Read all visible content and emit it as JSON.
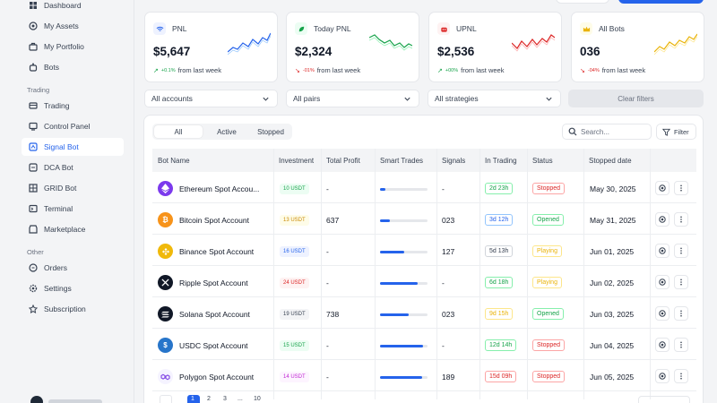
{
  "sidebar": {
    "items_main": [
      {
        "label": "Dashboard",
        "icon": "dashboard-icon"
      },
      {
        "label": "My Assets",
        "icon": "wallet-icon"
      },
      {
        "label": "My Portfolio",
        "icon": "portfolio-icon"
      },
      {
        "label": "Bots",
        "icon": "bot-icon"
      }
    ],
    "section_trading": "Trading",
    "items_trading": [
      {
        "label": "Trading",
        "icon": "trading-icon"
      },
      {
        "label": "Control Panel",
        "icon": "control-panel-icon"
      },
      {
        "label": "Signal Bot",
        "icon": "signal-icon"
      },
      {
        "label": "DCA Bot",
        "icon": "dca-icon"
      },
      {
        "label": "GRID Bot",
        "icon": "grid-icon"
      },
      {
        "label": "Terminal",
        "icon": "terminal-icon"
      },
      {
        "label": "Marketplace",
        "icon": "marketplace-icon"
      }
    ],
    "section_other": "Other",
    "items_other": [
      {
        "label": "Orders",
        "icon": "orders-icon"
      },
      {
        "label": "Settings",
        "icon": "gear-icon"
      },
      {
        "label": "Subscription",
        "icon": "subscription-icon"
      }
    ],
    "active": "Signal Bot"
  },
  "cards": [
    {
      "title": "PNL",
      "value": "$5,647",
      "pct": "+0.1%",
      "change_text": "from last week",
      "trend": "up",
      "icon": "wifi-icon",
      "color": "#2563eb",
      "bg": "#eef2ff"
    },
    {
      "title": "Today PNL",
      "value": "$2,324",
      "pct": "-01%",
      "change_text": "from last week",
      "trend": "down",
      "icon": "leaf-icon",
      "color": "#16a34a",
      "bg": "#ecfdf3"
    },
    {
      "title": "UPNL",
      "value": "$2,536",
      "pct": "+00%",
      "change_text": "from last week",
      "trend": "up",
      "icon": "robot-icon",
      "color": "#dc2626",
      "bg": "#fef2f2"
    },
    {
      "title": "All Bots",
      "value": "036",
      "pct": "-04%",
      "change_text": "from last week",
      "trend": "down",
      "icon": "crown-icon",
      "color": "#eab308",
      "bg": "#fefce8"
    }
  ],
  "filters": {
    "accounts": "All accounts",
    "pairs": "All pairs",
    "strategies": "All strategies",
    "clear": "Clear filters"
  },
  "tabs": [
    {
      "label": "All",
      "active": true
    },
    {
      "label": "Active",
      "active": false
    },
    {
      "label": "Stopped",
      "active": false
    }
  ],
  "search": {
    "placeholder": "Search..."
  },
  "filter_label": "Filter",
  "table": {
    "headers": [
      "Bot Name",
      "Investment",
      "Total Profit",
      "Smart Trades",
      "Signals",
      "In Trading",
      "Status",
      "Stopped date"
    ],
    "rows": [
      {
        "name": "Ethereum Spot Accou...",
        "coin": "ethereum",
        "coin_color": "#7c3aed",
        "investment": "10 USDT",
        "inv_color": "#16a34a",
        "inv_bg": "#ecfdf3",
        "profit": "-",
        "progress": 0.12,
        "signals": "-",
        "in_trading": "2d 23h",
        "trading_color": "#16a34a",
        "status": "Stopped",
        "status_color": "#dc2626",
        "date": "May 30, 2025"
      },
      {
        "name": "Bitcoin Spot Account",
        "coin": "bitcoin",
        "coin_color": "#f7931a",
        "investment": "13 USDT",
        "inv_color": "#ca8a04",
        "inv_bg": "#fefce8",
        "profit": "637",
        "progress": 0.2,
        "signals": "023",
        "in_trading": "3d 12h",
        "trading_color": "#2563eb",
        "status": "Opened",
        "status_color": "#16a34a",
        "date": "May 31, 2025"
      },
      {
        "name": "Binance Spot Account",
        "coin": "binance",
        "coin_color": "#f0b90b",
        "investment": "16 USDT",
        "inv_color": "#2563eb",
        "inv_bg": "#eef2ff",
        "profit": "-",
        "progress": 0.5,
        "signals": "127",
        "in_trading": "5d 13h",
        "trading_color": "#374151",
        "status": "Playing",
        "status_color": "#eab308",
        "date": "Jun 01, 2025"
      },
      {
        "name": "Ripple Spot Account",
        "coin": "ripple",
        "coin_color": "#111827",
        "investment": "24 USDT",
        "inv_color": "#dc2626",
        "inv_bg": "#fef2f2",
        "profit": "-",
        "progress": 0.8,
        "signals": "-",
        "in_trading": "6d 18h",
        "trading_color": "#16a34a",
        "status": "Playing",
        "status_color": "#eab308",
        "date": "Jun 02, 2025"
      },
      {
        "name": "Solana Spot Account",
        "coin": "solana",
        "coin_color": "#111827",
        "investment": "19 USDT",
        "inv_color": "#374151",
        "inv_bg": "#f3f4f6",
        "profit": "738",
        "progress": 0.6,
        "signals": "023",
        "in_trading": "9d 15h",
        "trading_color": "#eab308",
        "status": "Opened",
        "status_color": "#16a34a",
        "date": "Jun 03, 2025"
      },
      {
        "name": "USDC Spot Account",
        "coin": "usdc",
        "coin_color": "#2775ca",
        "investment": "15 USDT",
        "inv_color": "#16a34a",
        "inv_bg": "#ecfdf3",
        "profit": "-",
        "progress": 0.9,
        "signals": "-",
        "in_trading": "12d 14h",
        "trading_color": "#16a34a",
        "status": "Stopped",
        "status_color": "#dc2626",
        "date": "Jun 04, 2025"
      },
      {
        "name": "Polygon Spot Account",
        "coin": "polygon",
        "coin_color": "#8247e5",
        "investment": "14 USDT",
        "inv_color": "#c026d3",
        "inv_bg": "#fdf4ff",
        "profit": "-",
        "progress": 0.88,
        "signals": "189",
        "in_trading": "15d 09h",
        "trading_color": "#dc2626",
        "status": "Stopped",
        "status_color": "#dc2626",
        "date": "Jun 05, 2025"
      }
    ]
  },
  "pagination": {
    "pages": [
      "1",
      "2",
      "3",
      "...",
      "10"
    ],
    "active_page": "1"
  }
}
